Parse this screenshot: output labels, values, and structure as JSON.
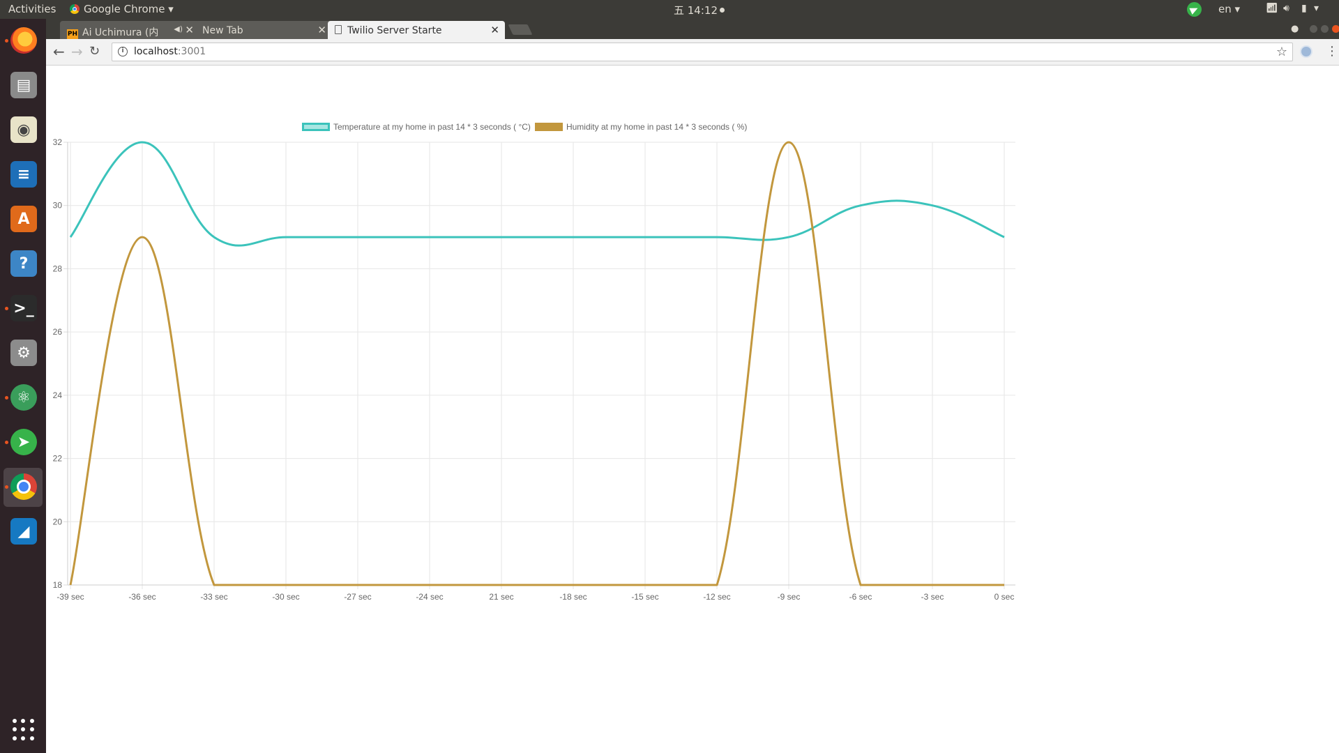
{
  "topbar": {
    "activities": "Activities",
    "app_menu": "Google Chrome ▾",
    "clock": "五 14:12",
    "language": "en ▾"
  },
  "dock": {
    "items": [
      {
        "name": "firefox-icon",
        "color": "#e66000",
        "glyph": "",
        "running": true
      },
      {
        "name": "files-icon",
        "color": "#8a8a8a",
        "glyph": "▤",
        "running": false
      },
      {
        "name": "rhythmbox-icon",
        "color": "#e8e3c8",
        "glyph": "◉",
        "running": false
      },
      {
        "name": "writer-icon",
        "color": "#1e6fb8",
        "glyph": "≡",
        "running": false
      },
      {
        "name": "software-center-icon",
        "color": "#e06a1b",
        "glyph": "A",
        "running": false
      },
      {
        "name": "help-icon",
        "color": "#3d86c6",
        "glyph": "?",
        "running": false
      },
      {
        "name": "terminal-icon",
        "color": "#2b2b2b",
        "glyph": ">_",
        "running": true
      },
      {
        "name": "settings-icon",
        "color": "#8c8c8c",
        "glyph": "⚙",
        "running": false
      },
      {
        "name": "atom-icon",
        "color": "#3a9e5b",
        "glyph": "⚛",
        "running": true
      },
      {
        "name": "telegram-icon",
        "color": "#37b34a",
        "glyph": "➤",
        "running": true
      },
      {
        "name": "chrome-icon",
        "color": "#ffffff",
        "glyph": "",
        "running": true,
        "active": true
      },
      {
        "name": "wireshark-icon",
        "color": "#1679c2",
        "glyph": "◢",
        "running": false
      }
    ]
  },
  "browser": {
    "tabs": [
      {
        "title": "Ai Uchimura (内",
        "favicon": "PH",
        "muted": true
      },
      {
        "title": "New Tab"
      },
      {
        "title": "Twilio Server Starte",
        "active": true
      }
    ],
    "url_host": "localhost",
    "url_port": ":3001"
  },
  "chart_data": {
    "type": "line",
    "x": [
      "-39 sec",
      "-36 sec",
      "-33 sec",
      "-30 sec",
      "-27 sec",
      "-24 sec",
      "21 sec",
      "-18 sec",
      "-15 sec",
      "-12 sec",
      "-9 sec",
      "-6 sec",
      "-3 sec",
      "0 sec"
    ],
    "series": [
      {
        "name": "Temperature at my home in past 14 * 3 seconds ( °C)",
        "color": "#3bc3bb",
        "fill": "#a8e6e2",
        "values": [
          29,
          32,
          29,
          29,
          29,
          29,
          29,
          29,
          29,
          29,
          29,
          30,
          30,
          29
        ]
      },
      {
        "name": "Humidity at my home in past 14 * 3 seconds ( %)",
        "color": "#c2973d",
        "fill": "#c2973d",
        "values": [
          18,
          29,
          18,
          18,
          18,
          18,
          18,
          18,
          18,
          18,
          32,
          18,
          18,
          18
        ]
      }
    ],
    "ylim": [
      18,
      32
    ],
    "yticks": [
      18,
      20,
      22,
      24,
      26,
      28,
      30,
      32
    ],
    "grid": true,
    "legend_position": "top"
  }
}
